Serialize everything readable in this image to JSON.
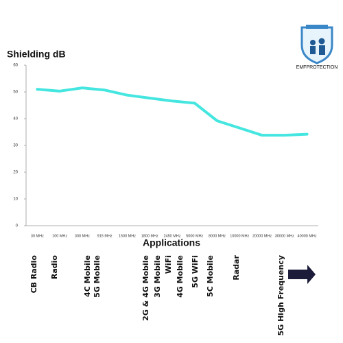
{
  "logo": "EMFPROTECTION",
  "chart_data": {
    "type": "line",
    "title": "Shielding dB",
    "x_label": "Applications",
    "categories": [
      "30 MHz",
      "100 MHz",
      "300 MHz",
      "915 MHz",
      "1500 MHz",
      "1800 MHz",
      "2450 MHz",
      "5000 MHz",
      "8000 MHz",
      "10000 MHz",
      "20000 MHz",
      "30000 MHz",
      "40000 MHz"
    ],
    "values": [
      51,
      50.3,
      51.5,
      50.7,
      48.8,
      47.7,
      46.6,
      45.8,
      39.2,
      36.5,
      33.8,
      33.8,
      34.2
    ],
    "color": "#45e6e0",
    "ylim": [
      0,
      60
    ],
    "yticks": [
      0,
      10,
      20,
      30,
      40,
      50,
      60
    ],
    "grid": false,
    "annotations": [
      "CB Radio",
      "Radio",
      "4C Mobile",
      "5G Mobile",
      "2G & 4G Mobile",
      "3G Mobile",
      "WiFi",
      "4G Mobile",
      "5G WiFi",
      "5C Mobile",
      "Radar",
      "5G High Frequency"
    ]
  }
}
